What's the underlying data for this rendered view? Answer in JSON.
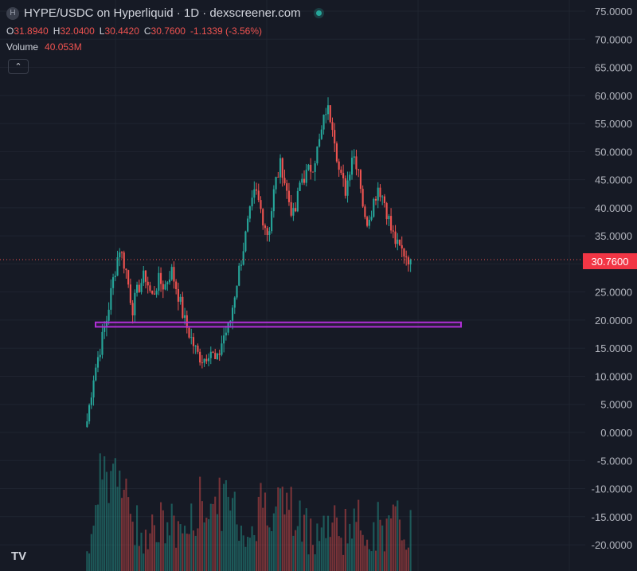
{
  "header": {
    "title": "HYPE/USDC on Hyperliquid · 1D · dexscreener.com",
    "symbol_icon": "H"
  },
  "ohlc": {
    "o_label": "O",
    "o": "31.8940",
    "h_label": "H",
    "h": "32.0400",
    "l_label": "L",
    "l": "30.4420",
    "c_label": "C",
    "c": "30.7600",
    "change": "-1.1339 (-3.56%)"
  },
  "volume": {
    "label": "Volume",
    "value": "40.053M"
  },
  "price_badge": "30.7600",
  "logo": "TV",
  "colors": {
    "up": "#26a69a",
    "down": "#ef5350",
    "highlight": "#b02fd6"
  },
  "chart_data": {
    "type": "candlestick",
    "y_ticks": [
      "75.0000",
      "70.0000",
      "65.0000",
      "60.0000",
      "55.0000",
      "50.0000",
      "45.0000",
      "40.0000",
      "35.0000",
      "30.0000",
      "25.0000",
      "20.0000",
      "15.0000",
      "10.0000",
      "5.0000",
      "0.0000",
      "-5.0000",
      "-10.0000",
      "-15.0000",
      "-20.0000"
    ],
    "ylim": [
      -22,
      77
    ],
    "last_price": 30.76,
    "highlight_zone": [
      18.8,
      19.6
    ],
    "approx_close_path": [
      2,
      10,
      15,
      20,
      27,
      33,
      29,
      22,
      26,
      28,
      24,
      27,
      26,
      29,
      25,
      20,
      17,
      14,
      13,
      15,
      12,
      17,
      19,
      26,
      32,
      38,
      43,
      39,
      35,
      44,
      48,
      42,
      38,
      45,
      46,
      48,
      52,
      58,
      55,
      46,
      43,
      50,
      47,
      37,
      40,
      44,
      41,
      36,
      33,
      32,
      30.76
    ]
  }
}
